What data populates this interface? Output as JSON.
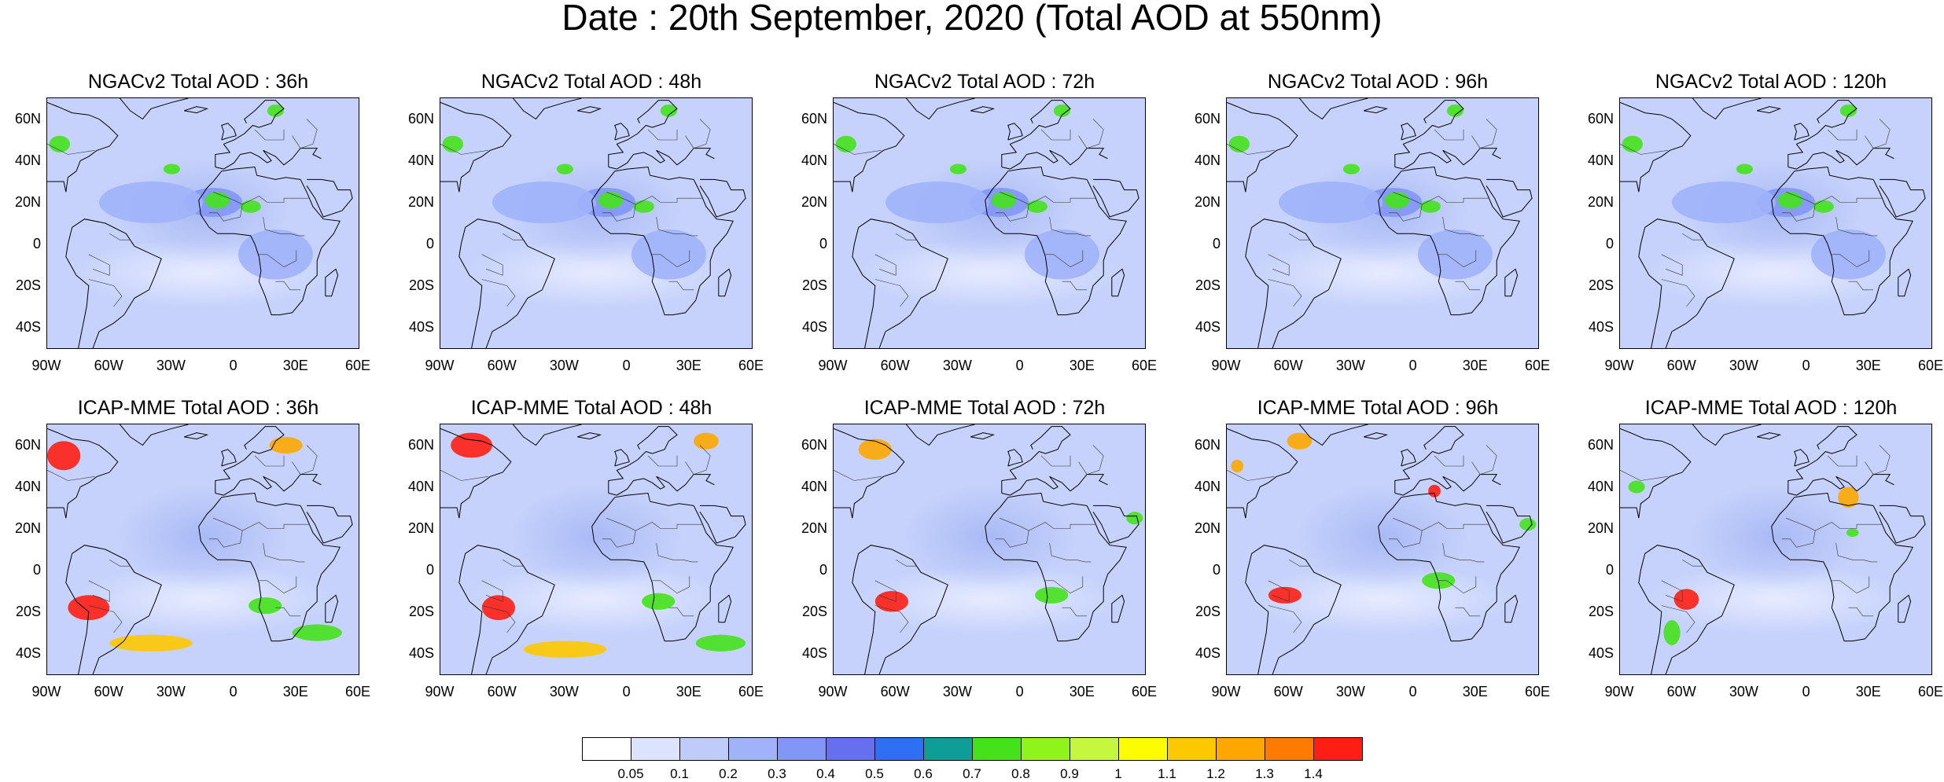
{
  "title": "Date : 20th September, 2020 (Total AOD at 550nm)",
  "latitude_ticks": [
    "60N",
    "40N",
    "20N",
    "0",
    "20S",
    "40S"
  ],
  "longitude_ticks": [
    "90W",
    "60W",
    "30W",
    "0",
    "30E",
    "60E"
  ],
  "panels": [
    {
      "title": "NGACv2 Total AOD : 36h",
      "model": "NGACv2",
      "lead": "36h"
    },
    {
      "title": "NGACv2 Total AOD : 48h",
      "model": "NGACv2",
      "lead": "48h"
    },
    {
      "title": "NGACv2 Total AOD : 72h",
      "model": "NGACv2",
      "lead": "72h"
    },
    {
      "title": "NGACv2 Total AOD : 96h",
      "model": "NGACv2",
      "lead": "96h"
    },
    {
      "title": "NGACv2 Total AOD : 120h",
      "model": "NGACv2",
      "lead": "120h"
    },
    {
      "title": "ICAP-MME Total AOD : 36h",
      "model": "ICAP-MME",
      "lead": "36h"
    },
    {
      "title": "ICAP-MME Total AOD : 48h",
      "model": "ICAP-MME",
      "lead": "48h"
    },
    {
      "title": "ICAP-MME Total AOD : 72h",
      "model": "ICAP-MME",
      "lead": "72h"
    },
    {
      "title": "ICAP-MME Total AOD : 96h",
      "model": "ICAP-MME",
      "lead": "96h"
    },
    {
      "title": "ICAP-MME Total AOD : 120h",
      "model": "ICAP-MME",
      "lead": "120h"
    }
  ],
  "colorbar": {
    "labels": [
      "0.05",
      "0.1",
      "0.2",
      "0.3",
      "0.4",
      "0.5",
      "0.6",
      "0.7",
      "0.8",
      "0.9",
      "1",
      "1.1",
      "1.2",
      "1.3",
      "1.4"
    ],
    "colors": [
      "#ffffff",
      "#dce3fd",
      "#bfcbfb",
      "#a0b3fa",
      "#8296f6",
      "#6670ef",
      "#2f6ff3",
      "#0e9d97",
      "#45e21c",
      "#8ef41c",
      "#c4f73e",
      "#fdfd00",
      "#fdc800",
      "#fea700",
      "#ff7a00",
      "#ff1e14"
    ]
  },
  "map_extent": {
    "lon": [
      -90,
      60
    ],
    "lat": [
      -50,
      70
    ]
  }
}
